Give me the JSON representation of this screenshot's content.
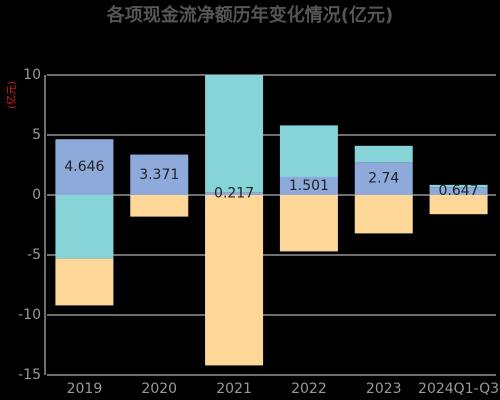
{
  "chart_data": {
    "type": "stacked_bar",
    "title": "各项现金流净额历年变化情况(亿元)",
    "y_label": "(亿元)",
    "categories": [
      "2019",
      "2020",
      "2021",
      "2022",
      "2023",
      "2024Q1-Q3"
    ],
    "series": [
      {
        "color": "#8eaadb",
        "values": [
          4.646,
          3.371,
          0.217,
          1.501,
          2.74,
          0.647
        ],
        "show_labels": true
      },
      {
        "color": "#86d4d8",
        "values": [
          -5.3,
          0,
          9.8,
          4.3,
          1.36,
          0.2
        ]
      },
      {
        "color": "#ffd899",
        "values": [
          -3.9,
          -1.8,
          -14.2,
          -4.7,
          -3.2,
          -1.6
        ]
      }
    ],
    "ylim": [
      -15,
      10
    ],
    "yticks": [
      -15,
      -10,
      -5,
      0,
      5,
      10
    ],
    "grid": true
  }
}
